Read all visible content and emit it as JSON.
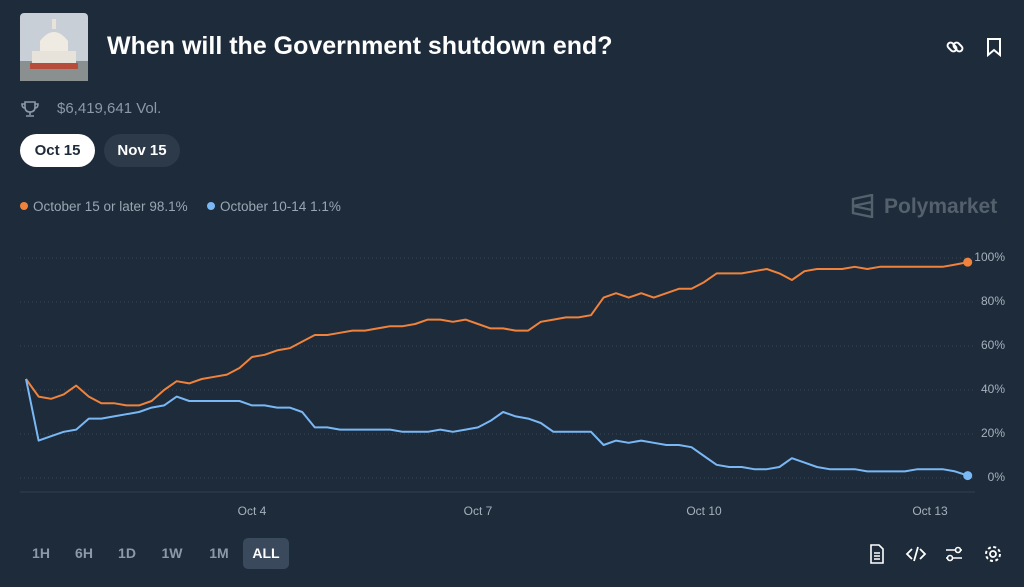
{
  "header": {
    "title": "When will the Government shutdown end?",
    "volume": "$6,419,641 Vol."
  },
  "tabs": [
    "Oct 15",
    "Nov 15"
  ],
  "brand": "Polymarket",
  "ranges": [
    "1H",
    "6H",
    "1D",
    "1W",
    "1M",
    "ALL"
  ],
  "chart_data": {
    "type": "line",
    "categories": [
      null,
      null,
      null,
      null,
      null,
      null,
      null,
      null,
      null,
      null,
      null,
      null,
      null,
      null,
      null,
      null,
      null,
      null,
      "Oct 4",
      null,
      null,
      null,
      null,
      null,
      null,
      null,
      null,
      null,
      null,
      null,
      null,
      null,
      null,
      null,
      null,
      null,
      "Oct 7",
      null,
      null,
      null,
      null,
      null,
      null,
      null,
      null,
      null,
      null,
      null,
      null,
      null,
      null,
      null,
      null,
      null,
      "Oct 10",
      null,
      null,
      null,
      null,
      null,
      null,
      null,
      null,
      null,
      null,
      null,
      null,
      null,
      null,
      null,
      null,
      null,
      "Oct 13",
      null,
      null,
      null
    ],
    "series": [
      {
        "name": "October 15 or later",
        "legend_value": "98.1%",
        "color": "#f0823c",
        "values": [
          45,
          37,
          36,
          38,
          42,
          37,
          34,
          34,
          33,
          33,
          35,
          40,
          44,
          43,
          45,
          46,
          47,
          50,
          55,
          56,
          58,
          59,
          62,
          65,
          65,
          66,
          67,
          67,
          68,
          69,
          69,
          70,
          72,
          72,
          71,
          72,
          70,
          68,
          68,
          67,
          67,
          71,
          72,
          73,
          73,
          74,
          82,
          84,
          82,
          84,
          82,
          84,
          86,
          86,
          89,
          93,
          93,
          93,
          94,
          95,
          93,
          90,
          94,
          95,
          95,
          95,
          96,
          95,
          96,
          96,
          96,
          96,
          96,
          96,
          97,
          98.1
        ]
      },
      {
        "name": "October 10-14",
        "legend_value": "1.1%",
        "color": "#7ab8f5",
        "values": [
          45,
          17,
          19,
          21,
          22,
          27,
          27,
          28,
          29,
          30,
          32,
          33,
          37,
          35,
          35,
          35,
          35,
          35,
          33,
          33,
          32,
          32,
          30,
          23,
          23,
          22,
          22,
          22,
          22,
          22,
          21,
          21,
          21,
          22,
          21,
          22,
          23,
          26,
          30,
          28,
          27,
          25,
          21,
          21,
          21,
          21,
          15,
          17,
          16,
          17,
          16,
          15,
          15,
          14,
          10,
          6,
          5,
          5,
          4,
          4,
          5,
          9,
          7,
          5,
          4,
          4,
          4,
          3,
          3,
          3,
          3,
          4,
          4,
          4,
          3,
          1.1
        ]
      }
    ],
    "ylim": [
      0,
      100
    ],
    "yticks": [
      {
        "value": 0,
        "label": "0%"
      },
      {
        "value": 20,
        "label": "20%"
      },
      {
        "value": 40,
        "label": "40%"
      },
      {
        "value": 60,
        "label": "60%"
      },
      {
        "value": 80,
        "label": "80%"
      },
      {
        "value": 100,
        "label": "100%"
      }
    ],
    "grid": true
  }
}
